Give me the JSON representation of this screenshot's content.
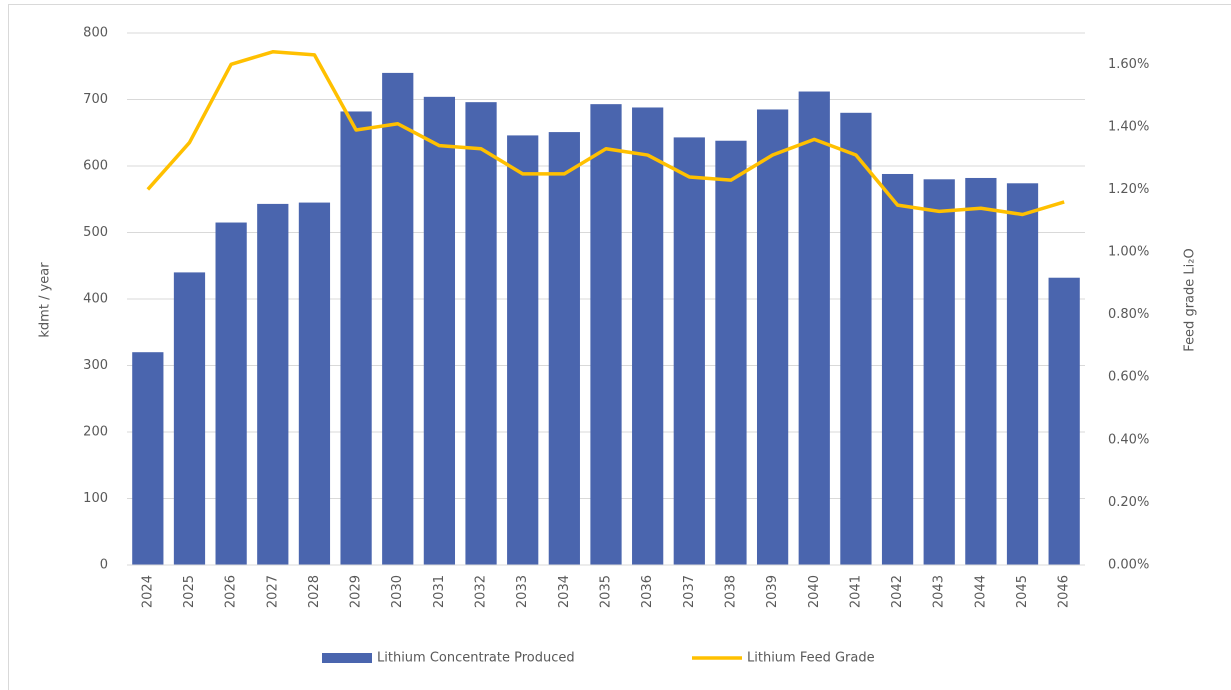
{
  "chart_data": {
    "type": "bar-line",
    "categories": [
      "2024",
      "2025",
      "2026",
      "2027",
      "2028",
      "2029",
      "2030",
      "2031",
      "2032",
      "2033",
      "2034",
      "2035",
      "2036",
      "2037",
      "2038",
      "2039",
      "2040",
      "2041",
      "2042",
      "2043",
      "2044",
      "2045",
      "2046"
    ],
    "series": [
      {
        "name": "Lithium Concentrate Produced",
        "type": "bar",
        "color": "#4a65ae",
        "values": [
          320,
          440,
          515,
          543,
          545,
          682,
          740,
          704,
          696,
          646,
          651,
          693,
          688,
          643,
          638,
          685,
          712,
          680,
          588,
          580,
          582,
          574,
          432
        ]
      },
      {
        "name": "Lithium Feed Grade",
        "type": "line",
        "axis": "y2",
        "color": "#ffc000",
        "values": [
          1.2,
          1.35,
          1.6,
          1.64,
          1.63,
          1.39,
          1.41,
          1.34,
          1.33,
          1.25,
          1.25,
          1.33,
          1.31,
          1.24,
          1.23,
          1.31,
          1.36,
          1.31,
          1.15,
          1.13,
          1.14,
          1.12,
          1.16
        ]
      }
    ],
    "ylabel": "kdmt / year",
    "y2label": "Feed grade Li₂O",
    "ylim": [
      0,
      800
    ],
    "yticks": [
      0,
      100,
      200,
      300,
      400,
      500,
      600,
      700,
      800
    ],
    "y2lim": [
      0,
      1.7
    ],
    "y2ticks": [
      {
        "value": 0,
        "label": "0.00%"
      },
      {
        "value": 0.2,
        "label": "0.20%"
      },
      {
        "value": 0.4,
        "label": "0.40%"
      },
      {
        "value": 0.6,
        "label": "0.60%"
      },
      {
        "value": 0.8,
        "label": "0.80%"
      },
      {
        "value": 1.0,
        "label": "1.00%"
      },
      {
        "value": 1.2,
        "label": "1.20%"
      },
      {
        "value": 1.4,
        "label": "1.40%"
      },
      {
        "value": 1.6,
        "label": "1.60%"
      }
    ],
    "grid": true,
    "legend": "bottom"
  }
}
